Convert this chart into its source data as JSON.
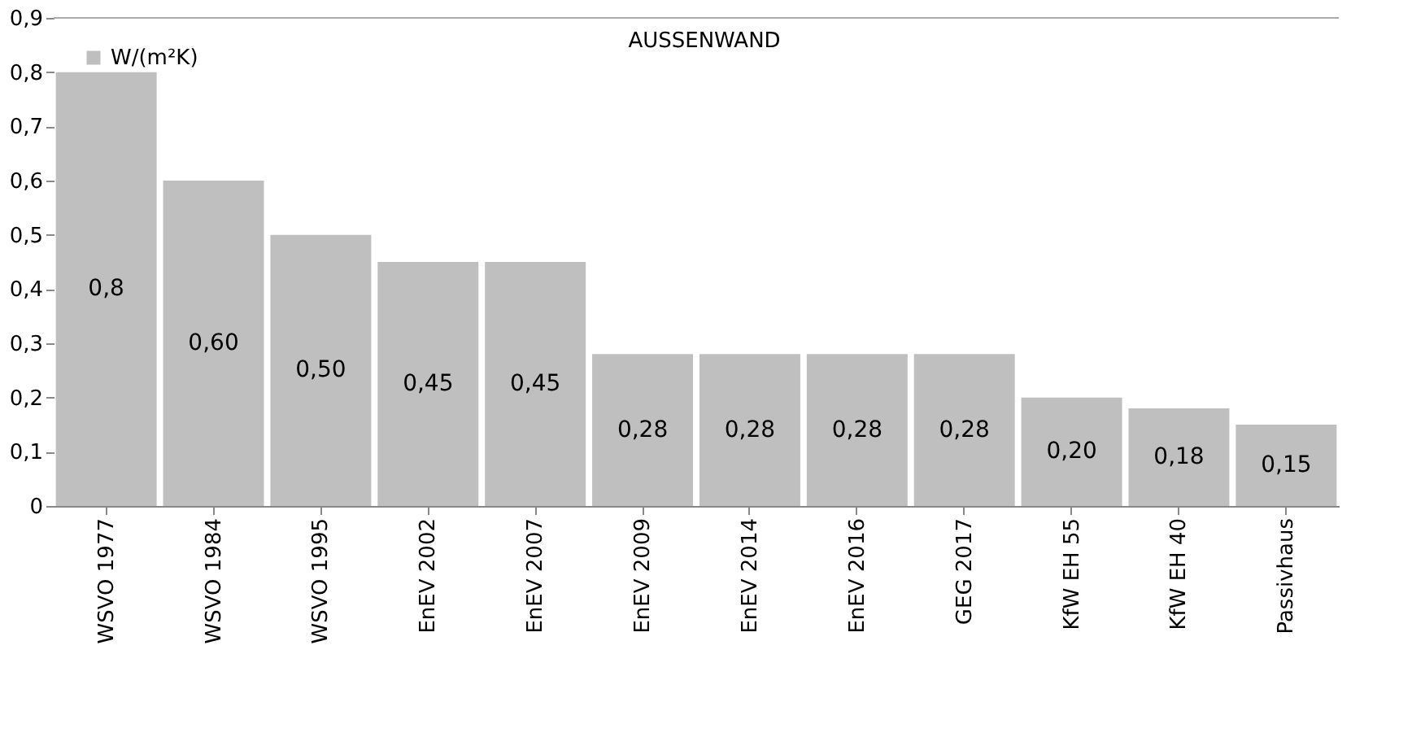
{
  "chart_data": {
    "type": "bar",
    "categories": [
      "WSVO 1977",
      "WSVO 1984",
      "WSVO 1995",
      "EnEV 2002",
      "EnEV 2007",
      "EnEV 2009",
      "EnEV 2014",
      "EnEV 2016",
      "GEG 2017",
      "KfW EH 55",
      "KfW EH 40",
      "Passivhaus"
    ],
    "series": [
      {
        "name": "W/(m²K)",
        "color": "#bfbfbf",
        "values": [
          0.8,
          0.6,
          0.5,
          0.45,
          0.45,
          0.28,
          0.28,
          0.28,
          0.28,
          0.2,
          0.18,
          0.15
        ],
        "value_labels": [
          "0,8",
          "0,60",
          "0,50",
          "0,45",
          "0,45",
          "0,28",
          "0,28",
          "0,28",
          "0,28",
          "0,20",
          "0,18",
          "0,15"
        ]
      }
    ],
    "annotations": [
      "AUSSENWAND"
    ],
    "ylim": [
      0,
      0.9
    ],
    "yticks": [
      0,
      {
        "value": 0.1,
        "label": "0,1"
      },
      {
        "value": 0.2,
        "label": "0,2"
      },
      {
        "value": 0.3,
        "label": "0,3"
      },
      {
        "value": 0.4,
        "label": "0,4"
      },
      {
        "value": 0.5,
        "label": "0,5"
      },
      {
        "value": 0.6,
        "label": "0,6"
      },
      {
        "value": 0.7,
        "label": "0,7"
      },
      {
        "value": 0.8,
        "label": "0,8"
      },
      {
        "value": 0.9,
        "label": "0,9"
      }
    ],
    "grid": false,
    "legend": "top left"
  }
}
